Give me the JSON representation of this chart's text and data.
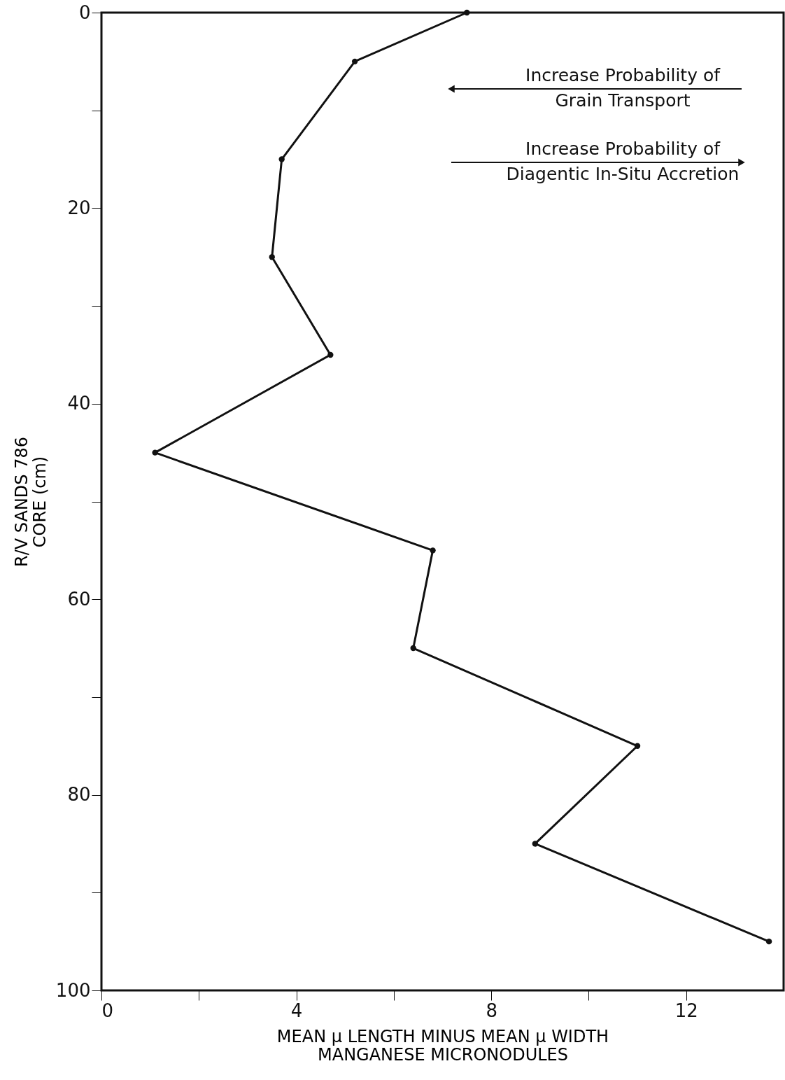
{
  "chart_data": {
    "type": "line",
    "xlabel": "MEAN μ LENGTH MINUS MEAN μ WIDTH\nMANGANESE MICRONODULES",
    "ylabel": "R/V SANDS 786\nCORE (cm)",
    "x": [
      7.5,
      5.2,
      3.7,
      3.5,
      4.7,
      1.1,
      6.8,
      6.4,
      11.0,
      8.9,
      13.7
    ],
    "values": [
      0,
      5,
      15,
      25,
      35,
      45,
      55,
      65,
      75,
      85,
      95
    ],
    "color": "#111111",
    "marker": "circle",
    "line_style": "solid",
    "grid": false,
    "xlim": [
      0,
      14
    ],
    "ylim": [
      100,
      0
    ],
    "xticks": [
      0,
      {
        "value": 2,
        "label": null
      },
      4,
      {
        "value": 6,
        "label": null
      },
      8,
      {
        "value": 10,
        "label": null
      },
      12
    ],
    "yticks": [
      0,
      {
        "value": 10,
        "label": null
      },
      20,
      {
        "value": 30,
        "label": null
      },
      40,
      {
        "value": 50,
        "label": null
      },
      60,
      {
        "value": 70,
        "label": null
      },
      80,
      {
        "value": 90,
        "label": null
      },
      100
    ],
    "annotations": [
      "Increase Probability of\nGrain Transport",
      "Increase Probability of\nDiagentic In-Situ Accretion"
    ]
  }
}
